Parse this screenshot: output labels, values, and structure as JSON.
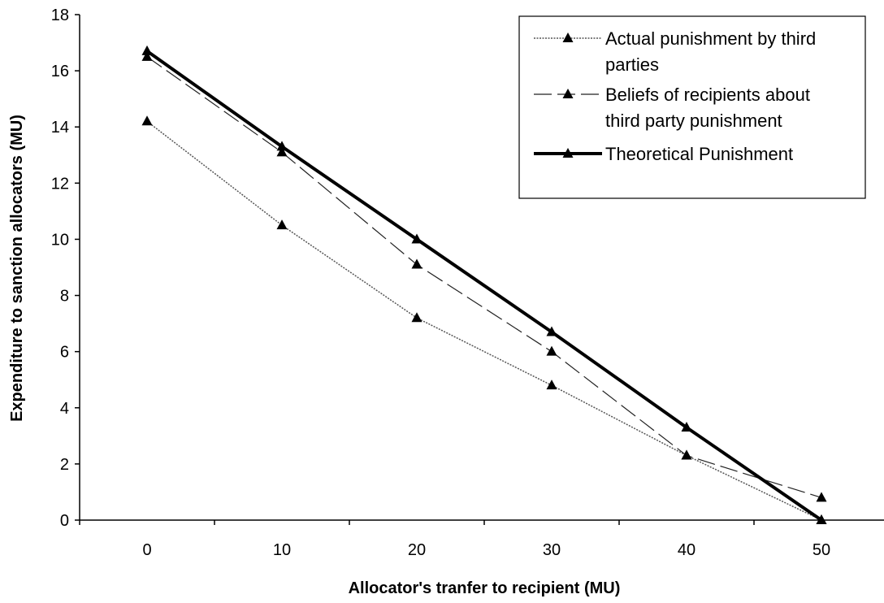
{
  "chart_data": {
    "type": "line",
    "title": "",
    "xlabel": "Allocator's tranfer to recipient (MU)",
    "ylabel": "Expenditure to sanction allocators (MU)",
    "x": [
      0,
      10,
      20,
      30,
      40,
      50
    ],
    "xlim": [
      -5,
      55
    ],
    "ylim": [
      0,
      18
    ],
    "xticks": [
      "0",
      "10",
      "20",
      "30",
      "40",
      "50"
    ],
    "yticks": [
      "0",
      "2",
      "4",
      "6",
      "8",
      "10",
      "12",
      "14",
      "16",
      "18"
    ],
    "grid": false,
    "legend_position": "top-right",
    "series": [
      {
        "name": "Actual punishment by third parties",
        "legend_lines": [
          "Actual punishment by third",
          "parties"
        ],
        "values": [
          14.2,
          10.5,
          7.2,
          4.8,
          2.3,
          0.0
        ],
        "style": "dotted",
        "color": "#555555"
      },
      {
        "name": "Beliefs of recipients about third party punishment",
        "legend_lines": [
          "Beliefs of recipients about",
          "third party punishment"
        ],
        "values": [
          16.5,
          13.1,
          9.1,
          6.0,
          2.3,
          0.8
        ],
        "style": "dashed",
        "color": "#222222"
      },
      {
        "name": "Theoretical Punishment",
        "legend_lines": [
          "Theoretical Punishment"
        ],
        "values": [
          16.7,
          13.3,
          10.0,
          6.7,
          3.3,
          0.0
        ],
        "style": "thick",
        "color": "#000000"
      }
    ]
  }
}
